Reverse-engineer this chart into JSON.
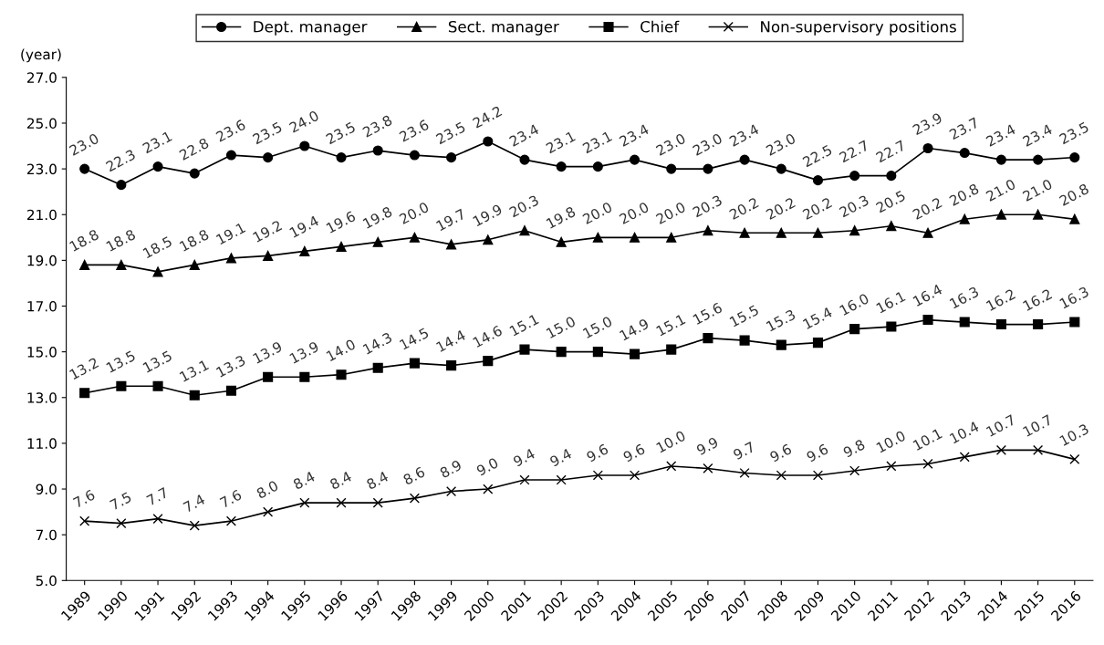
{
  "chart_data": {
    "type": "line",
    "ylabel": "(year)",
    "categories": [
      "1989",
      "1990",
      "1991",
      "1992",
      "1993",
      "1994",
      "1995",
      "1996",
      "1997",
      "1998",
      "1999",
      "2000",
      "2001",
      "2002",
      "2003",
      "2004",
      "2005",
      "2006",
      "2007",
      "2008",
      "2009",
      "2010",
      "2011",
      "2012",
      "2013",
      "2014",
      "2015",
      "2016"
    ],
    "series": [
      {
        "name": "Dept. manager",
        "color": "#000000",
        "marker": "circle",
        "values": [
          23.0,
          22.3,
          23.1,
          22.8,
          23.6,
          23.5,
          24.0,
          23.5,
          23.8,
          23.6,
          23.5,
          24.2,
          23.4,
          23.1,
          23.1,
          23.4,
          23.0,
          23.0,
          23.4,
          23.0,
          22.5,
          22.7,
          22.7,
          23.9,
          23.7,
          23.4,
          23.4,
          23.5
        ],
        "value_labels": [
          "23.0",
          "22.3",
          "23.1",
          "22.8",
          "23.6",
          "23.5",
          "24.0",
          "23.5",
          "23.8",
          "23.6",
          "23.5",
          "24.2",
          "23.4",
          "23.1",
          "23.1",
          "23.4",
          "23.0",
          "23.0",
          "23.4",
          "23.0",
          "22.5",
          "22.7",
          "22.7",
          "23.9",
          "23.7",
          "23.4",
          "23.4",
          "23.5"
        ]
      },
      {
        "name": "Sect. manager",
        "color": "#000000",
        "marker": "triangle",
        "values": [
          18.8,
          18.8,
          18.5,
          18.8,
          19.1,
          19.2,
          19.4,
          19.6,
          19.8,
          20.0,
          19.7,
          19.9,
          20.3,
          19.8,
          20.0,
          20.0,
          20.0,
          20.3,
          20.2,
          20.2,
          20.2,
          20.3,
          20.5,
          20.2,
          20.8,
          21.0,
          21.0,
          20.8
        ],
        "value_labels": [
          "18.8",
          "18.8",
          "18.5",
          "18.8",
          "19.1",
          "19.2",
          "19.4",
          "19.6",
          "19.8",
          "20.0",
          "19.7",
          "19.9",
          "20.3",
          "19.8",
          "20.0",
          "20.0",
          "20.0",
          "20.3",
          "20.2",
          "20.2",
          "20.2",
          "20.3",
          "20.5",
          "20.2",
          "20.8",
          "21.0",
          "21.0",
          "20.8"
        ]
      },
      {
        "name": "Chief",
        "color": "#000000",
        "marker": "square",
        "values": [
          13.2,
          13.5,
          13.5,
          13.1,
          13.3,
          13.9,
          13.9,
          14.0,
          14.3,
          14.5,
          14.4,
          14.6,
          15.1,
          15.0,
          15.0,
          14.9,
          15.1,
          15.6,
          15.5,
          15.3,
          15.4,
          16.0,
          16.1,
          16.4,
          16.3,
          16.2,
          16.2,
          16.3
        ],
        "value_labels": [
          "13.2",
          "13.5",
          "13.5",
          "13.1",
          "13.3",
          "13.9",
          "13.9",
          "14.0",
          "14.3",
          "14.5",
          "14.4",
          "14.6",
          "15.1",
          "15.0",
          "15.0",
          "14.9",
          "15.1",
          "15.6",
          "15.5",
          "15.3",
          "15.4",
          "16.0",
          "16.1",
          "16.4",
          "16.3",
          "16.2",
          "16.2",
          "16.3"
        ]
      },
      {
        "name": "Non-supervisory positions",
        "color": "#000000",
        "marker": "cross",
        "values": [
          7.6,
          7.5,
          7.7,
          7.4,
          7.6,
          8.0,
          8.4,
          8.4,
          8.4,
          8.6,
          8.9,
          9.0,
          9.4,
          9.4,
          9.6,
          9.6,
          10.0,
          9.9,
          9.7,
          9.6,
          9.6,
          9.8,
          10.0,
          10.1,
          10.4,
          10.7,
          10.7,
          10.3
        ],
        "value_labels": [
          "7.6",
          "7.5",
          "7.7",
          "7.4",
          "7.6",
          "8.0",
          "8.4",
          "8.4",
          "8.4",
          "8.6",
          "8.9",
          "9.0",
          "9.4",
          "9.4",
          "9.6",
          "9.6",
          "10.0",
          "9.9",
          "9.7",
          "9.6",
          "9.6",
          "9.8",
          "10.0",
          "10.1",
          "10.4",
          "10.7",
          "10.7",
          "10.3"
        ]
      }
    ],
    "ylim": [
      5.0,
      27.0
    ],
    "yticks": [
      {
        "value": 5,
        "label": "5.0"
      },
      {
        "value": 7,
        "label": "7.0"
      },
      {
        "value": 9,
        "label": "9.0"
      },
      {
        "value": 11,
        "label": "11.0"
      },
      {
        "value": 13,
        "label": "13.0"
      },
      {
        "value": 15,
        "label": "15.0"
      },
      {
        "value": 17,
        "label": "17.0"
      },
      {
        "value": 19,
        "label": "19.0"
      },
      {
        "value": 21,
        "label": "21.0"
      },
      {
        "value": 23,
        "label": "23.0"
      },
      {
        "value": 25,
        "label": "25.0"
      },
      {
        "value": 27,
        "label": "27.0"
      }
    ],
    "grid": false,
    "legend": "top",
    "line_style": "solid"
  }
}
